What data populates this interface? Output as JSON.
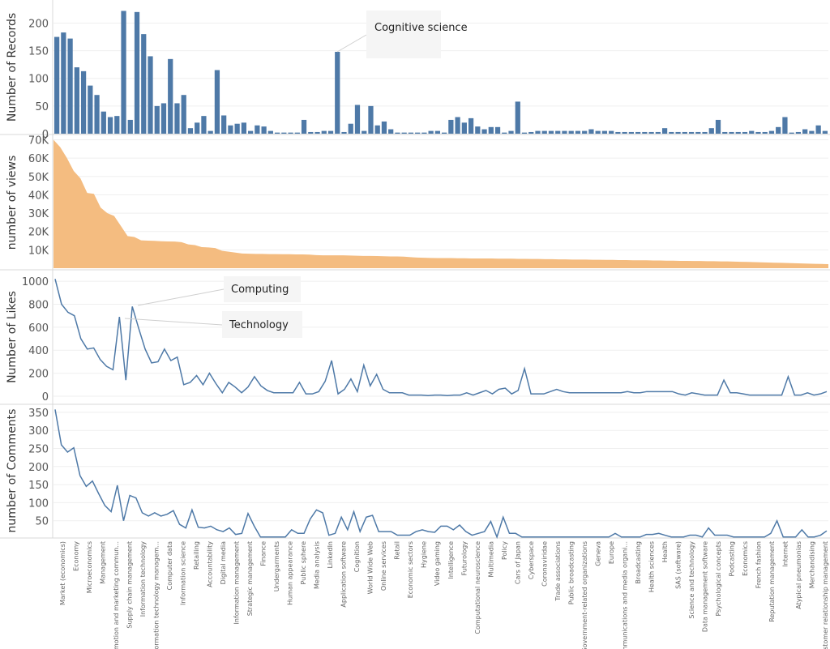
{
  "chart_data": [
    {
      "type": "bar",
      "ylabel": "Number of Records",
      "ylim": [
        0,
        230
      ],
      "yticks": [
        0,
        50,
        100,
        150,
        200
      ],
      "color": "#4e79a7",
      "values": [
        175,
        183,
        172,
        120,
        113,
        87,
        70,
        40,
        30,
        32,
        222,
        25,
        220,
        180,
        140,
        50,
        55,
        135,
        55,
        70,
        10,
        20,
        32,
        5,
        115,
        33,
        15,
        18,
        20,
        5,
        15,
        13,
        5,
        2,
        2,
        2,
        2,
        25,
        3,
        3,
        5,
        5,
        148,
        3,
        18,
        52,
        5,
        50,
        15,
        22,
        8,
        2,
        2,
        2,
        2,
        2,
        5,
        5,
        2,
        25,
        30,
        20,
        28,
        13,
        8,
        12,
        12,
        2,
        5,
        58,
        2,
        3,
        5,
        5,
        5,
        5,
        5,
        5,
        5,
        5,
        8,
        5,
        5,
        5,
        3,
        3,
        3,
        3,
        3,
        3,
        3,
        10,
        3,
        3,
        3,
        3,
        3,
        3,
        10,
        25,
        3,
        3,
        3,
        3,
        5,
        3,
        3,
        5,
        12,
        30,
        2,
        3,
        8,
        5,
        15,
        5
      ],
      "annotations": [
        {
          "text": "Cognitive science"
        }
      ]
    },
    {
      "type": "area",
      "ylabel": "number of views",
      "ylim": [
        0,
        72000
      ],
      "yticks": [
        10000,
        20000,
        30000,
        40000,
        50000,
        60000,
        70000
      ],
      "ytick_labels": [
        "10K",
        "20K",
        "30K",
        "40K",
        "50K",
        "60K",
        "70K"
      ],
      "color": "#f4bc80",
      "values": [
        70000,
        66000,
        60000,
        53000,
        49000,
        41000,
        40500,
        33000,
        30000,
        28500,
        23000,
        17500,
        17000,
        15200,
        15000,
        14900,
        14700,
        14600,
        14500,
        14200,
        13000,
        12600,
        11500,
        11300,
        11000,
        9500,
        9000,
        8500,
        8000,
        7900,
        7800,
        7800,
        7700,
        7700,
        7600,
        7600,
        7500,
        7500,
        7400,
        7100,
        7000,
        7000,
        7000,
        7000,
        6900,
        6800,
        6700,
        6700,
        6600,
        6500,
        6400,
        6400,
        6300,
        6000,
        5800,
        5700,
        5600,
        5500,
        5500,
        5500,
        5400,
        5400,
        5300,
        5300,
        5300,
        5300,
        5200,
        5200,
        5200,
        5100,
        5100,
        5000,
        5000,
        4900,
        4900,
        4800,
        4800,
        4700,
        4700,
        4700,
        4600,
        4600,
        4500,
        4500,
        4400,
        4400,
        4300,
        4300,
        4300,
        4200,
        4200,
        4100,
        4100,
        4000,
        4000,
        3900,
        3900,
        3800,
        3800,
        3700,
        3700,
        3600,
        3500,
        3400,
        3300,
        3200,
        3100,
        3000,
        2900,
        2800,
        2700,
        2600,
        2500,
        2400,
        2300,
        2200
      ],
      "xlabels": []
    },
    {
      "type": "line",
      "ylabel": "Number of Likes",
      "ylim": [
        0,
        1050
      ],
      "yticks": [
        0,
        200,
        400,
        600,
        800,
        1000
      ],
      "color": "#4e79a7",
      "values": [
        1020,
        800,
        730,
        700,
        500,
        410,
        420,
        320,
        260,
        230,
        690,
        140,
        780,
        590,
        410,
        290,
        300,
        410,
        310,
        340,
        100,
        120,
        180,
        100,
        200,
        110,
        30,
        120,
        80,
        30,
        80,
        170,
        90,
        50,
        30,
        30,
        30,
        30,
        120,
        20,
        20,
        40,
        130,
        310,
        20,
        60,
        150,
        40,
        270,
        90,
        190,
        60,
        30,
        30,
        30,
        10,
        10,
        10,
        5,
        10,
        10,
        5,
        10,
        10,
        30,
        10,
        30,
        50,
        20,
        60,
        70,
        20,
        50,
        240,
        20,
        20,
        20,
        40,
        60,
        40,
        30,
        30,
        30,
        30,
        30,
        30,
        30,
        30,
        30,
        40,
        30,
        30,
        40,
        40,
        40,
        40,
        40,
        20,
        10,
        30,
        20,
        10,
        10,
        10,
        140,
        30,
        30,
        20,
        10,
        10,
        10,
        10,
        10,
        10,
        170,
        10,
        10,
        30,
        10,
        20,
        40
      ],
      "annotations": [
        {
          "text": "Computing"
        },
        {
          "text": "Technology"
        }
      ]
    },
    {
      "type": "line",
      "ylabel": "number of Comments",
      "ylim": [
        0,
        370
      ],
      "yticks": [
        50,
        100,
        150,
        200,
        250,
        300,
        350
      ],
      "color": "#4e79a7",
      "values": [
        358,
        260,
        240,
        252,
        175,
        145,
        160,
        125,
        92,
        75,
        148,
        50,
        120,
        113,
        72,
        63,
        72,
        63,
        68,
        78,
        40,
        30,
        80,
        32,
        30,
        35,
        25,
        20,
        30,
        12,
        15,
        70,
        35,
        5,
        5,
        5,
        5,
        5,
        25,
        15,
        15,
        55,
        80,
        72,
        10,
        15,
        60,
        25,
        75,
        20,
        60,
        65,
        20,
        20,
        20,
        10,
        10,
        10,
        20,
        25,
        20,
        18,
        35,
        35,
        25,
        38,
        20,
        10,
        15,
        20,
        48,
        5,
        60,
        15,
        15,
        5,
        5,
        5,
        5,
        5,
        5,
        5,
        5,
        5,
        5,
        5,
        5,
        5,
        5,
        5,
        15,
        5,
        5,
        5,
        5,
        12,
        12,
        15,
        10,
        5,
        5,
        5,
        10,
        10,
        5,
        30,
        10,
        10,
        10,
        5,
        5,
        5,
        5,
        5,
        5,
        15,
        50,
        5,
        5,
        5,
        25,
        5,
        5,
        10,
        22
      ]
    }
  ],
  "categories_labels": [
    "Market (economics)",
    "Economy",
    "Microeconomics",
    "Management",
    "Promotion and marketing commun...",
    "Supply chain management",
    "Information technology",
    "Information technology managem...",
    "Computer data",
    "Information science",
    "Retailing",
    "Accountability",
    "Digital media",
    "Information management",
    "Strategic management",
    "Finance",
    "Undergarments",
    "Human appearance",
    "Public sphere",
    "Media analysis",
    "LinkedIn",
    "Application software",
    "Cognition",
    "World Wide Web",
    "Online services",
    "Retail",
    "Economic sectors",
    "Hygiene",
    "Video gaming",
    "Intelligence",
    "Futurology",
    "Computational neuroscience",
    "Multimedia",
    "Policy",
    "Cars of Japan",
    "Cyberspace",
    "Coronaviridae",
    "Trade associations",
    "Public broadcasting",
    "Government-related organizations",
    "Geneva",
    "Europe",
    "Communications and media organi...",
    "Broadcasting",
    "Health sciences",
    "Health",
    "SAS (software)",
    "Science and technology",
    "Data management software",
    "Psychological concepts",
    "Podcasting",
    "Economics",
    "French fashion",
    "Reputation management",
    "Internet",
    "Atypical pneumonias",
    "Merchandising",
    "Customer relationship management"
  ]
}
